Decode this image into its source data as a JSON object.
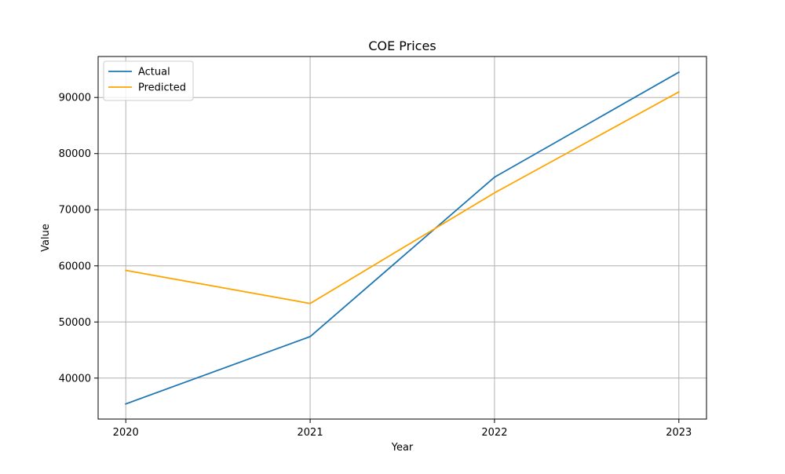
{
  "chart_data": {
    "type": "line",
    "title": "COE Prices",
    "xlabel": "Year",
    "ylabel": "Value",
    "categories": [
      "2020",
      "2021",
      "2022",
      "2023"
    ],
    "x": [
      2020,
      2021,
      2022,
      2023
    ],
    "xlim": [
      2019.85,
      2023.15
    ],
    "ylim": [
      32700,
      97300
    ],
    "yticks": [
      40000,
      50000,
      60000,
      70000,
      80000,
      90000
    ],
    "ytick_labels": [
      "40000",
      "50000",
      "60000",
      "70000",
      "80000",
      "90000"
    ],
    "grid": true,
    "legend_position": "upper-left",
    "series": [
      {
        "name": "Actual",
        "color": "#1f77b4",
        "values": [
          35400,
          47400,
          75800,
          94500
        ]
      },
      {
        "name": "Predicted",
        "color": "#ffa500",
        "values": [
          59200,
          53300,
          73000,
          91000
        ]
      }
    ]
  }
}
